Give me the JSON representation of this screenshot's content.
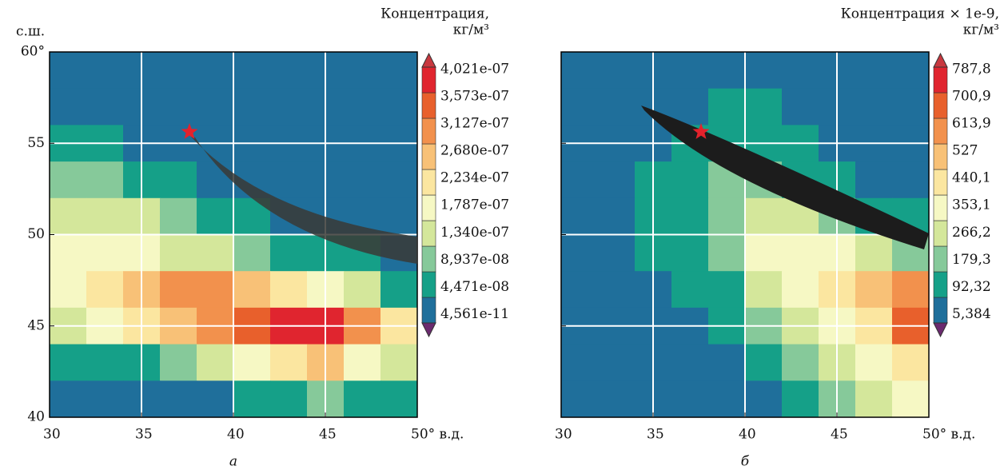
{
  "y_axis_label": "с.ш.",
  "colors": [
    "#1f6f9b",
    "#15a088",
    "#86c99a",
    "#d4e79b",
    "#f6f8c4",
    "#fbe6a0",
    "#f8c177",
    "#f2914d",
    "#e8602c",
    "#e0252f"
  ],
  "triangle_colors": [
    "#c8383f",
    "#6b2a6f"
  ],
  "panels": [
    {
      "label": "а",
      "colorbar_title": [
        "Концентрация,",
        "кг/м³"
      ],
      "colorbar_labels": [
        "4,021e-07",
        "3,573e-07",
        "3,127e-07",
        "2,680e-07",
        "2,234e-07",
        "1,787e-07",
        "1,340e-07",
        "8,937e-08",
        "4,471e-08",
        "4,561e-11"
      ],
      "xlim": [
        30,
        50
      ],
      "ylim": [
        40,
        60
      ],
      "xticks": [
        30,
        35,
        40,
        45,
        {
          "value": 50,
          "label": "50° в.д."
        }
      ],
      "yticks": [
        {
          "value": 60,
          "label": "60°"
        },
        55,
        50,
        45,
        40
      ],
      "levels": [
        [
          0,
          0,
          0,
          0,
          0,
          0,
          0,
          0,
          0,
          0
        ],
        [
          0,
          0,
          0,
          0,
          0,
          0,
          0,
          0,
          0,
          0
        ],
        [
          1,
          1,
          0,
          0,
          0,
          0,
          0,
          0,
          0,
          0
        ],
        [
          2,
          2,
          1,
          1,
          0,
          0,
          0,
          0,
          0,
          0
        ],
        [
          3,
          3,
          3,
          2,
          1,
          1,
          0,
          0,
          0,
          0
        ],
        [
          4,
          4,
          4,
          3,
          3,
          2,
          1,
          1,
          1,
          0
        ],
        [
          4,
          5,
          6,
          7,
          7,
          6,
          5,
          4,
          3,
          1
        ],
        [
          3,
          4,
          5,
          6,
          7,
          8,
          9,
          9,
          7,
          5
        ],
        [
          1,
          1,
          1,
          2,
          3,
          4,
          5,
          6,
          4,
          3
        ],
        [
          0,
          0,
          0,
          0,
          0,
          1,
          1,
          2,
          1,
          1
        ]
      ]
    },
    {
      "label": "б",
      "colorbar_title": [
        "Концентрация × 1e-9,",
        "кг/м³"
      ],
      "colorbar_labels": [
        "787,8",
        "700,9",
        "613,9",
        "527",
        "440,1",
        "353,1",
        "266,2",
        "179,3",
        "92,32",
        "5,384"
      ],
      "xlim": [
        30,
        50
      ],
      "ylim": [
        40,
        60
      ],
      "xticks": [
        30,
        35,
        40,
        45,
        {
          "value": 50,
          "label": "50° в.д."
        }
      ],
      "yticks": [],
      "levels": [
        [
          0,
          0,
          0,
          0,
          0,
          0,
          0,
          0,
          0,
          0
        ],
        [
          0,
          0,
          0,
          0,
          1,
          1,
          0,
          0,
          0,
          0
        ],
        [
          0,
          0,
          0,
          1,
          1,
          1,
          1,
          0,
          0,
          0
        ],
        [
          0,
          0,
          1,
          1,
          2,
          2,
          1,
          1,
          0,
          0
        ],
        [
          0,
          0,
          1,
          1,
          2,
          3,
          3,
          2,
          1,
          1
        ],
        [
          0,
          0,
          1,
          1,
          2,
          4,
          4,
          4,
          3,
          2
        ],
        [
          0,
          0,
          0,
          1,
          1,
          3,
          4,
          5,
          6,
          7
        ],
        [
          0,
          0,
          0,
          0,
          1,
          2,
          3,
          4,
          5,
          8
        ],
        [
          0,
          0,
          0,
          0,
          0,
          1,
          2,
          3,
          4,
          5
        ],
        [
          0,
          0,
          0,
          0,
          0,
          0,
          1,
          2,
          3,
          4
        ]
      ]
    }
  ]
}
